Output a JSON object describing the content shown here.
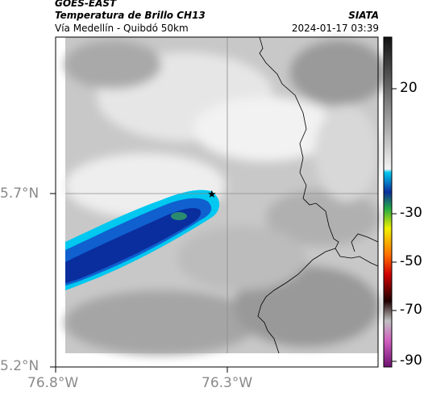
{
  "header": {
    "satellite": "GOES-EAST",
    "product": "Temperatura de Brillo CH13",
    "region": "Vía Medellín - Quibdó 50km",
    "agency": "SIATA",
    "datetime": "2024-01-17 03:39"
  },
  "axes": {
    "lat_labels": [
      "5.7°N",
      "5.2°N"
    ],
    "lon_labels": [
      "76.8°W",
      "76.3°W"
    ]
  },
  "colorbar": {
    "labels": [
      "20",
      "-30",
      "-50",
      "-70",
      "-90"
    ]
  },
  "colors": {
    "cloud_cyan": "#00c8f0",
    "cloud_blue": "#1060d0",
    "cloud_dark": "#0a2e9e",
    "cloud_core": "#2a8a70"
  }
}
